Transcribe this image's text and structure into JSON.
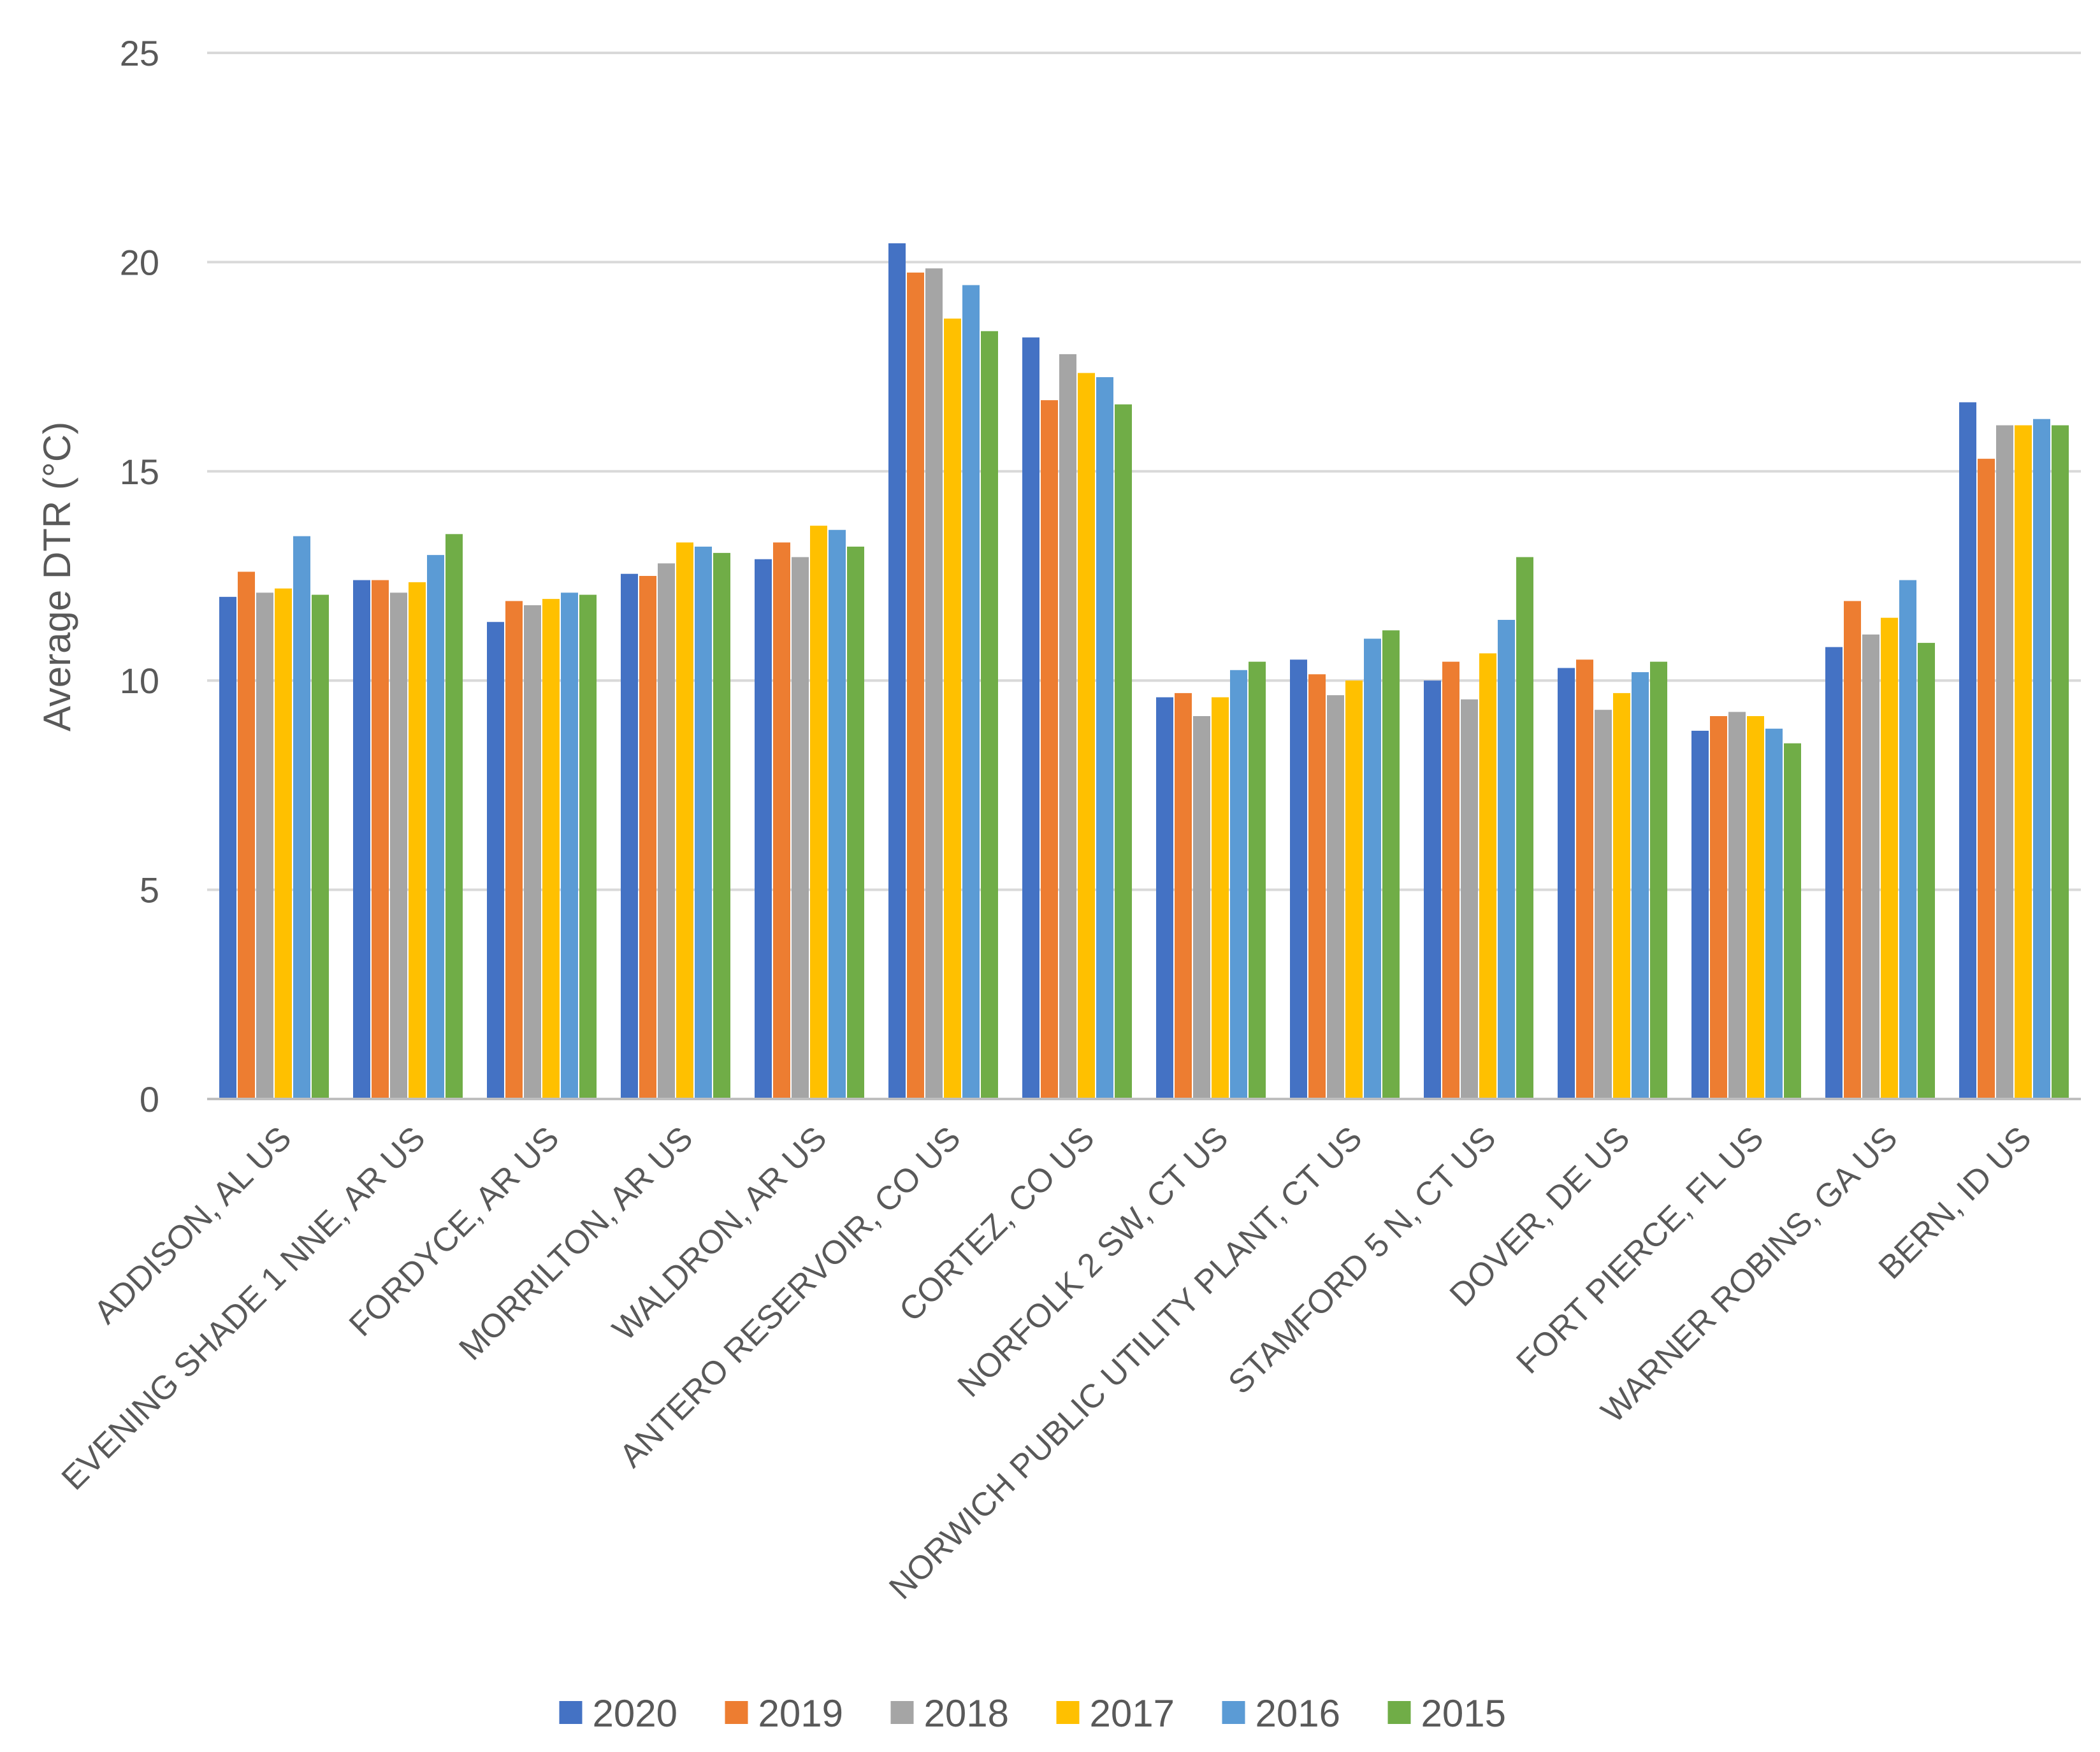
{
  "chart_data": {
    "type": "bar",
    "title": "",
    "xlabel": "",
    "ylabel": "Average DTR (°C)",
    "ylim": [
      0,
      25
    ],
    "yticks": [
      0,
      5,
      10,
      15,
      20,
      25
    ],
    "grid": true,
    "legend_position": "bottom",
    "categories": [
      "ADDISON, AL US",
      "EVENING SHADE 1 NNE, AR US",
      "FORDYCE, AR US",
      "MORRILTON, AR US",
      "WALDRON, AR US",
      "ANTERO RESERVOIR, CO US",
      "CORTEZ, CO US",
      "NORFOLK 2 SW, CT US",
      "NORWICH PUBLIC UTILITY PLANT, CT US",
      "STAMFORD 5 N, CT US",
      "DOVER, DE US",
      "FORT PIERCE, FL US",
      "WARNER ROBINS, GA US",
      "BERN, ID US"
    ],
    "series": [
      {
        "name": "2020",
        "color": "#4472C4",
        "values": [
          12.0,
          12.4,
          11.4,
          12.55,
          12.9,
          20.45,
          18.2,
          9.6,
          10.5,
          10.0,
          10.3,
          8.8,
          10.8,
          16.65
        ]
      },
      {
        "name": "2019",
        "color": "#ED7D31",
        "values": [
          12.6,
          12.4,
          11.9,
          12.5,
          13.3,
          19.75,
          16.7,
          9.7,
          10.15,
          10.45,
          10.5,
          9.15,
          11.9,
          15.3
        ]
      },
      {
        "name": "2018",
        "color": "#A5A5A5",
        "values": [
          12.1,
          12.1,
          11.8,
          12.8,
          12.95,
          19.85,
          17.8,
          9.15,
          9.65,
          9.55,
          9.3,
          9.25,
          11.1,
          16.1
        ]
      },
      {
        "name": "2017",
        "color": "#FFC000",
        "values": [
          12.2,
          12.35,
          11.95,
          13.3,
          13.7,
          18.65,
          17.35,
          9.6,
          10.0,
          10.65,
          9.7,
          9.15,
          11.5,
          16.1
        ]
      },
      {
        "name": "2016",
        "color": "#5B9BD5",
        "values": [
          13.45,
          13.0,
          12.1,
          13.2,
          13.6,
          19.45,
          17.25,
          10.25,
          11.0,
          11.45,
          10.2,
          8.85,
          12.4,
          16.25
        ]
      },
      {
        "name": "2015",
        "color": "#70AD47",
        "values": [
          12.05,
          13.5,
          12.05,
          13.05,
          13.2,
          18.35,
          16.6,
          10.45,
          11.2,
          12.95,
          10.45,
          8.5,
          10.9,
          16.1
        ]
      }
    ]
  }
}
